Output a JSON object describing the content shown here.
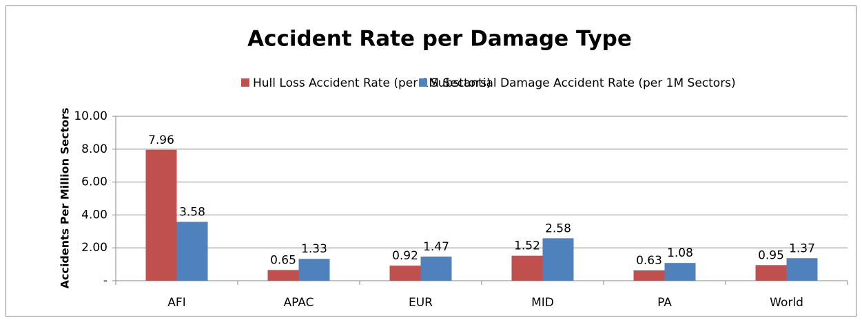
{
  "chart_data": {
    "type": "bar",
    "title": "Accident Rate per Damage Type",
    "y_label": "Accidents Per Million Sectors",
    "categories": [
      "AFI",
      "APAC",
      "EUR",
      "MID",
      "PA",
      "World"
    ],
    "series": [
      {
        "name": "Hull Loss Accident Rate (per 1M Sectors)",
        "color": "#c0504d",
        "values": [
          7.96,
          0.65,
          0.92,
          1.52,
          0.63,
          0.95
        ]
      },
      {
        "name": "Substantial Damage Accident Rate (per 1M Sectors)",
        "color": "#4f81bd",
        "values": [
          3.58,
          1.33,
          1.47,
          2.58,
          1.08,
          1.37
        ]
      }
    ],
    "ylim": [
      0,
      10
    ],
    "yticks": [
      {
        "value": 0,
        "label": "-"
      },
      {
        "value": 2,
        "label": "2.00"
      },
      {
        "value": 4,
        "label": "4.00"
      },
      {
        "value": 6,
        "label": "6.00"
      },
      {
        "value": 8,
        "label": "8.00"
      },
      {
        "value": 10,
        "label": "10.00"
      }
    ],
    "grid": true,
    "legend": "top"
  }
}
